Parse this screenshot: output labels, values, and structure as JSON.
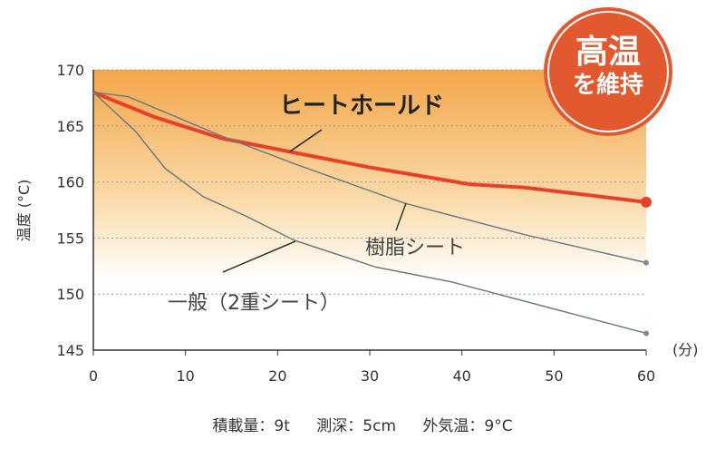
{
  "chart_data": {
    "type": "line",
    "xlabel": "(分)",
    "ylabel": "温度 (°C)",
    "xlim": [
      0,
      60
    ],
    "ylim": [
      145,
      170
    ],
    "xticks": [
      0,
      10,
      20,
      30,
      40,
      50,
      60
    ],
    "yticks": [
      145,
      150,
      155,
      160,
      165,
      170
    ],
    "grid": "horizontal dotted",
    "series": [
      {
        "name": "ヒートホールド",
        "color": "#e8412a",
        "x": [
          0,
          6.6,
          13.9,
          21.3,
          30,
          40.8,
          46.8,
          52,
          60
        ],
        "y": [
          168,
          165.8,
          163.9,
          162.7,
          161.3,
          159.8,
          159.5,
          159.0,
          158.2
        ]
      },
      {
        "name": "樹脂シート",
        "color": "#6b7d82",
        "x": [
          0,
          3.8,
          13.9,
          21.9,
          33.8,
          46.8,
          60
        ],
        "y": [
          168,
          167.6,
          164.1,
          161.6,
          158.1,
          155.3,
          152.8
        ]
      },
      {
        "name": "一般（2重シート）",
        "color": "#6b7d82",
        "x": [
          0,
          4.6,
          7.8,
          11.9,
          16.7,
          21.8,
          30.7,
          38.8,
          50.8,
          60
        ],
        "y": [
          168,
          164.5,
          161.2,
          158.7,
          156.9,
          154.8,
          152.4,
          151.1,
          148.5,
          146.5
        ]
      }
    ],
    "annotations": {
      "badge_line1": "高温",
      "badge_line2": "を維持"
    }
  },
  "footer": {
    "load": "積載量：9t",
    "depth": "測深：5cm",
    "temp": "外気温：9°C"
  }
}
